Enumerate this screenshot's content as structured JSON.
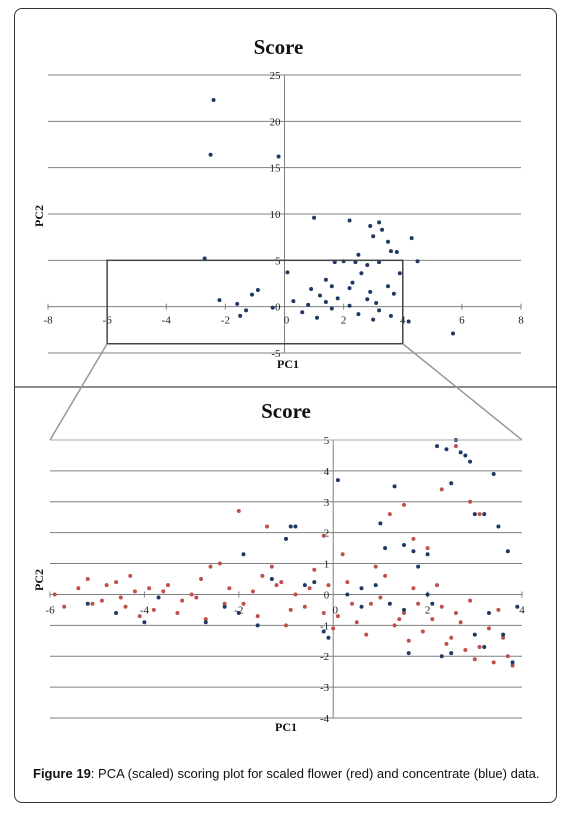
{
  "figure": {
    "label": "Figure 19",
    "caption_text": ": PCA (scaled) scoring plot for scaled flower (red) and concentrate (blue) data."
  },
  "colors": {
    "flower": "#c0504d",
    "concentrate": "#1f3864",
    "grid": "#808080",
    "axis": "#808080",
    "zoom_box": "#444444"
  },
  "chart_data": [
    {
      "type": "scatter",
      "title": "Score",
      "xlabel": "PC1",
      "ylabel": "PC2",
      "xlim": [
        -8,
        8
      ],
      "ylim": [
        -5,
        25
      ],
      "xticks": [
        -8,
        -6,
        -4,
        -2,
        0,
        2,
        4,
        6,
        8
      ],
      "yticks": [
        -5,
        0,
        5,
        10,
        15,
        20,
        25
      ],
      "grid": true,
      "series_notes": "red = flower, blue = concentrate (per caption)",
      "series": [
        {
          "name": "flower",
          "color": "#c0504d",
          "points": []
        },
        {
          "name": "concentrate",
          "color": "#1f3864",
          "points": [
            [
              -2.4,
              22.3
            ],
            [
              -2.5,
              16.4
            ],
            [
              -0.2,
              16.2
            ],
            [
              1.0,
              9.6
            ],
            [
              2.2,
              9.3
            ],
            [
              2.9,
              8.7
            ],
            [
              3.2,
              9.1
            ],
            [
              3.3,
              8.3
            ],
            [
              3.0,
              7.6
            ],
            [
              3.5,
              7.0
            ],
            [
              4.3,
              7.4
            ],
            [
              3.6,
              6.0
            ],
            [
              3.8,
              5.9
            ],
            [
              4.5,
              4.9
            ],
            [
              -2.7,
              5.2
            ],
            [
              2.5,
              5.6
            ],
            [
              2.4,
              4.8
            ],
            [
              1.7,
              4.8
            ],
            [
              2.0,
              4.9
            ],
            [
              2.8,
              4.5
            ],
            [
              3.2,
              4.8
            ],
            [
              3.9,
              3.6
            ],
            [
              0.1,
              3.7
            ],
            [
              2.6,
              3.6
            ],
            [
              1.4,
              2.9
            ],
            [
              2.3,
              2.6
            ],
            [
              3.5,
              2.2
            ],
            [
              1.6,
              2.2
            ],
            [
              2.2,
              2.0
            ],
            [
              0.9,
              1.9
            ],
            [
              -0.9,
              1.8
            ],
            [
              2.9,
              1.6
            ],
            [
              3.7,
              1.4
            ],
            [
              -1.1,
              1.3
            ],
            [
              1.2,
              1.2
            ],
            [
              1.8,
              0.9
            ],
            [
              2.8,
              0.8
            ],
            [
              -2.2,
              0.7
            ],
            [
              0.3,
              0.6
            ],
            [
              1.4,
              0.5
            ],
            [
              3.1,
              0.4
            ],
            [
              -1.6,
              0.3
            ],
            [
              0.8,
              0.2
            ],
            [
              2.2,
              0.1
            ],
            [
              -0.4,
              -0.1
            ],
            [
              1.6,
              -0.2
            ],
            [
              3.2,
              -0.4
            ],
            [
              -1.3,
              -0.4
            ],
            [
              0.6,
              -0.6
            ],
            [
              2.5,
              -0.8
            ],
            [
              3.6,
              -1.0
            ],
            [
              -1.5,
              -1.0
            ],
            [
              1.1,
              -1.2
            ],
            [
              3.0,
              -1.4
            ],
            [
              5.7,
              -2.9
            ],
            [
              4.2,
              -1.6
            ]
          ]
        }
      ]
    },
    {
      "type": "scatter",
      "title": "Score",
      "xlabel": "PC1",
      "ylabel": "PC2",
      "xlim": [
        -6,
        4
      ],
      "ylim": [
        -4,
        5
      ],
      "xticks": [
        -6,
        -4,
        -2,
        0,
        2,
        4
      ],
      "yticks": [
        -4,
        -3,
        -2,
        -1,
        0,
        1,
        2,
        3,
        4,
        5
      ],
      "grid": true,
      "series": [
        {
          "name": "flower",
          "color": "#c0504d",
          "points": [
            [
              -5.9,
              0.0
            ],
            [
              -5.4,
              0.2
            ],
            [
              -5.7,
              -0.4
            ],
            [
              -5.2,
              0.5
            ],
            [
              -4.9,
              -0.2
            ],
            [
              -4.8,
              0.3
            ],
            [
              -4.6,
              0.4
            ],
            [
              -4.3,
              0.6
            ],
            [
              -4.5,
              -0.1
            ],
            [
              -4.2,
              0.1
            ],
            [
              -3.8,
              -0.5
            ],
            [
              -3.5,
              0.3
            ],
            [
              -3.2,
              -0.2
            ],
            [
              -3.0,
              0.0
            ],
            [
              -2.8,
              0.5
            ],
            [
              -2.6,
              0.9
            ],
            [
              -2.4,
              1.0
            ],
            [
              -2.2,
              0.2
            ],
            [
              -1.9,
              -0.3
            ],
            [
              -1.7,
              0.1
            ],
            [
              -1.5,
              0.6
            ],
            [
              -1.3,
              0.9
            ],
            [
              -1.1,
              0.4
            ],
            [
              -0.8,
              0.0
            ],
            [
              -0.6,
              -0.4
            ],
            [
              -0.4,
              0.8
            ],
            [
              -0.2,
              -0.6
            ],
            [
              -0.1,
              0.3
            ],
            [
              0.1,
              -0.7
            ],
            [
              0.3,
              0.4
            ],
            [
              0.5,
              -0.9
            ],
            [
              0.8,
              -0.3
            ],
            [
              1.1,
              0.6
            ],
            [
              1.3,
              -1.0
            ],
            [
              1.5,
              -0.6
            ],
            [
              1.7,
              0.2
            ],
            [
              1.9,
              -1.2
            ],
            [
              2.1,
              -0.8
            ],
            [
              2.3,
              -0.4
            ],
            [
              2.5,
              -1.4
            ],
            [
              2.7,
              -0.9
            ],
            [
              2.9,
              -0.2
            ],
            [
              3.1,
              -1.7
            ],
            [
              3.3,
              -1.1
            ],
            [
              3.5,
              -0.5
            ],
            [
              3.7,
              -2.0
            ],
            [
              3.8,
              -2.3
            ],
            [
              3.6,
              -1.4
            ],
            [
              -2.0,
              2.7
            ],
            [
              -1.4,
              2.2
            ],
            [
              -0.2,
              1.9
            ],
            [
              1.2,
              2.6
            ],
            [
              1.5,
              2.9
            ],
            [
              2.3,
              3.4
            ],
            [
              2.6,
              4.8
            ],
            [
              2.9,
              3.0
            ],
            [
              3.1,
              2.6
            ],
            [
              1.7,
              1.8
            ],
            [
              0.2,
              1.3
            ],
            [
              2.0,
              1.5
            ],
            [
              -3.3,
              -0.6
            ],
            [
              -4.1,
              -0.7
            ],
            [
              -2.7,
              -0.8
            ],
            [
              -1.0,
              -1.0
            ],
            [
              0.7,
              -1.3
            ],
            [
              2.4,
              -1.6
            ],
            [
              3.0,
              -2.1
            ],
            [
              -5.1,
              -0.3
            ],
            [
              -3.6,
              0.1
            ],
            [
              -0.9,
              -0.5
            ],
            [
              1.0,
              -0.1
            ],
            [
              2.2,
              0.3
            ],
            [
              -2.3,
              -0.3
            ],
            [
              -1.6,
              -0.7
            ],
            [
              0.0,
              -1.1
            ],
            [
              1.6,
              -1.5
            ],
            [
              2.8,
              -1.8
            ],
            [
              3.4,
              -2.2
            ],
            [
              -4.4,
              -0.4
            ],
            [
              -3.9,
              0.2
            ],
            [
              -2.9,
              -0.1
            ],
            [
              -1.2,
              0.3
            ],
            [
              0.4,
              -0.3
            ],
            [
              1.4,
              -0.8
            ],
            [
              2.6,
              -0.6
            ],
            [
              -0.5,
              0.2
            ],
            [
              0.9,
              0.9
            ],
            [
              1.8,
              -0.3
            ]
          ]
        },
        {
          "name": "concentrate",
          "color": "#1f3864",
          "points": [
            [
              -5.2,
              -0.3
            ],
            [
              -4.6,
              -0.6
            ],
            [
              -4.0,
              -0.9
            ],
            [
              -3.7,
              -0.1
            ],
            [
              -2.3,
              -0.4
            ],
            [
              -2.7,
              -0.9
            ],
            [
              -2.0,
              -0.6
            ],
            [
              -1.9,
              1.3
            ],
            [
              -1.6,
              -1.0
            ],
            [
              -1.3,
              0.5
            ],
            [
              -1.0,
              1.8
            ],
            [
              -0.9,
              2.2
            ],
            [
              -0.8,
              2.2
            ],
            [
              -0.4,
              0.4
            ],
            [
              -0.2,
              -1.2
            ],
            [
              -0.1,
              -1.4
            ],
            [
              0.1,
              3.7
            ],
            [
              0.3,
              0.0
            ],
            [
              0.6,
              -0.4
            ],
            [
              0.9,
              0.3
            ],
            [
              1.0,
              2.3
            ],
            [
              1.1,
              1.5
            ],
            [
              1.3,
              3.5
            ],
            [
              1.5,
              1.6
            ],
            [
              1.7,
              1.4
            ],
            [
              1.8,
              0.9
            ],
            [
              2.0,
              1.3
            ],
            [
              2.2,
              4.8
            ],
            [
              2.4,
              4.7
            ],
            [
              2.5,
              3.6
            ],
            [
              2.6,
              5.0
            ],
            [
              2.7,
              4.6
            ],
            [
              2.8,
              4.5
            ],
            [
              2.9,
              4.3
            ],
            [
              3.0,
              2.6
            ],
            [
              3.2,
              2.6
            ],
            [
              3.4,
              3.9
            ],
            [
              3.5,
              2.2
            ],
            [
              3.7,
              1.4
            ],
            [
              3.9,
              -0.4
            ],
            [
              3.6,
              -1.3
            ],
            [
              3.2,
              -1.7
            ],
            [
              3.0,
              -1.3
            ],
            [
              2.5,
              -1.9
            ],
            [
              2.1,
              -0.3
            ],
            [
              2.0,
              0.0
            ],
            [
              1.5,
              -0.5
            ],
            [
              1.2,
              -0.3
            ],
            [
              3.8,
              -2.2
            ],
            [
              3.3,
              -0.6
            ],
            [
              2.3,
              -2.0
            ],
            [
              1.6,
              -1.9
            ],
            [
              0.6,
              0.2
            ],
            [
              -0.6,
              0.3
            ]
          ]
        }
      ]
    }
  ]
}
